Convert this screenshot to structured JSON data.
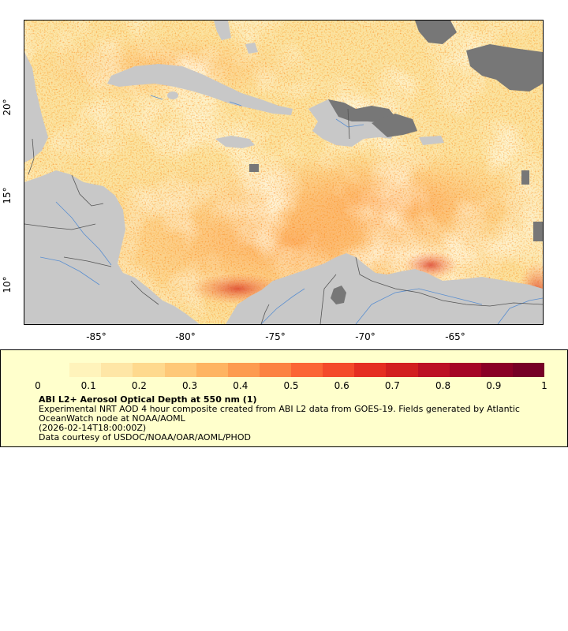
{
  "map": {
    "x_ticks": [
      "-85°",
      "-80°",
      "-75°",
      "-70°",
      "-65°"
    ],
    "y_ticks": [
      "20°",
      "15°",
      "10°"
    ],
    "colors": {
      "land": "#c8c8c8",
      "no_data": "#777777",
      "rivers": "#5b8fd0",
      "borders": "#555555",
      "aod_background": "#fbe3a2"
    }
  },
  "legend": {
    "colorbar_labels": [
      "0",
      "0.1",
      "0.2",
      "0.3",
      "0.4",
      "0.5",
      "0.6",
      "0.7",
      "0.8",
      "0.9",
      "1"
    ],
    "colorbar_colors": [
      "#ffffcc",
      "#fff3bb",
      "#fee6a6",
      "#fed98e",
      "#fec878",
      "#feb462",
      "#fd9b50",
      "#fc8242",
      "#fb6535",
      "#f44a2b",
      "#e52e22",
      "#d21f20",
      "#bc1024",
      "#a50526",
      "#8a0026",
      "#760026"
    ],
    "title": "ABI L2+ Aerosol Optical Depth at 550 nm (1)",
    "lines": [
      "Experimental NRT AOD 4 hour composite created from ABI L2 data from GOES-19. Fields generated by Atlantic OceanWatch node at NOAA/AOML",
      "(2026-02-14T18:00:00Z)",
      "Data courtesy of USDOC/NOAA/OAR/AOML/PHOD"
    ]
  }
}
